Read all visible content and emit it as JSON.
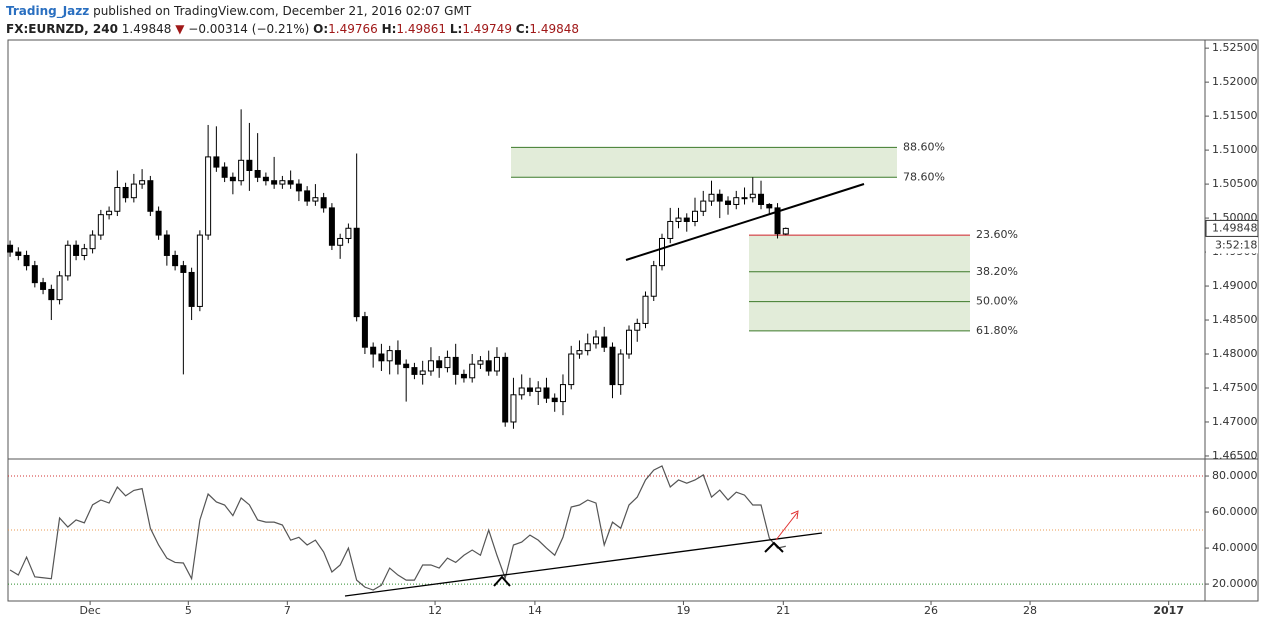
{
  "header": {
    "user": "Trading_Jazz",
    "published": "published on TradingView.com, December 21, 2016 02:07 GMT",
    "symbol": "FX:EURNZD, 240",
    "change": "−0.00314 (−0.21%)",
    "open_label": "O:",
    "high_label": "H:",
    "low_label": "L:",
    "close_label": "C:",
    "countdown": "3:52:18"
  },
  "chart_data": [
    {
      "type": "candlestick",
      "up_color": "#ffffff",
      "down_color": "#000000",
      "xlim": [
        -0.25,
        144.8
      ],
      "xticks": [
        {
          "value": 9.7,
          "label": "Dec"
        },
        {
          "value": 21.6,
          "label": "5"
        },
        {
          "value": 33.6,
          "label": "7"
        },
        {
          "value": 51.5,
          "label": "12"
        },
        {
          "value": 63.6,
          "label": "14"
        },
        {
          "value": 81.6,
          "label": "19"
        },
        {
          "value": 93.7,
          "label": "21"
        },
        {
          "value": 111.6,
          "label": "26"
        },
        {
          "value": 123.6,
          "label": "28"
        },
        {
          "value": 140.4,
          "label": "2017"
        }
      ],
      "ylim": [
        1.4647,
        1.5262
      ],
      "yticks": [
        {
          "value": 1.525,
          "label": "1.52500"
        },
        {
          "value": 1.52,
          "label": "1.52000"
        },
        {
          "value": 1.515,
          "label": "1.51500"
        },
        {
          "value": 1.51,
          "label": "1.51000"
        },
        {
          "value": 1.505,
          "label": "1.50500"
        },
        {
          "value": 1.5,
          "label": "1.50000"
        },
        {
          "value": 1.495,
          "label": "1.49500"
        },
        {
          "value": 1.49,
          "label": "1.49000"
        },
        {
          "value": 1.485,
          "label": "1.48500"
        },
        {
          "value": 1.48,
          "label": "1.48000"
        },
        {
          "value": 1.475,
          "label": "1.47500"
        },
        {
          "value": 1.47,
          "label": "1.47000"
        },
        {
          "value": 1.465,
          "label": "1.46500"
        }
      ],
      "open": [
        1.496,
        1.495,
        1.4945,
        1.493,
        1.4905,
        1.4895,
        1.488,
        1.4915,
        1.496,
        1.4945,
        1.4955,
        1.4975,
        1.5005,
        1.501,
        1.5045,
        1.503,
        1.505,
        1.5055,
        1.501,
        1.4975,
        1.4945,
        1.493,
        1.492,
        1.487,
        1.4975,
        1.509,
        1.5075,
        1.506,
        1.5055,
        1.5085,
        1.507,
        1.506,
        1.5055,
        1.505,
        1.5055,
        1.505,
        1.504,
        1.5025,
        1.503,
        1.5015,
        1.496,
        1.497,
        1.4985,
        1.4855,
        1.481,
        1.48,
        1.479,
        1.4805,
        1.4785,
        1.478,
        1.477,
        1.4775,
        1.479,
        1.478,
        1.4795,
        1.477,
        1.4765,
        1.4785,
        1.479,
        1.4775,
        1.4795,
        1.47,
        1.474,
        1.475,
        1.4745,
        1.475,
        1.4735,
        1.473,
        1.4755,
        1.48,
        1.4805,
        1.4815,
        1.4825,
        1.481,
        1.4755,
        1.48,
        1.4835,
        1.4845,
        1.4885,
        1.493,
        1.497,
        1.4995,
        1.5,
        1.4995,
        1.501,
        1.5025,
        1.5035,
        1.5025,
        1.502,
        1.503,
        1.503,
        1.5035,
        1.502,
        1.5015,
        1.49766
      ],
      "high": [
        1.4967,
        1.4957,
        1.4952,
        1.4937,
        1.4912,
        1.4902,
        1.4922,
        1.4967,
        1.4967,
        1.4962,
        1.4982,
        1.5012,
        1.5017,
        1.507,
        1.5052,
        1.5065,
        1.5072,
        1.5062,
        1.5017,
        1.4982,
        1.4952,
        1.4937,
        1.4927,
        1.4982,
        1.5137,
        1.5135,
        1.5082,
        1.5067,
        1.516,
        1.514,
        1.5125,
        1.5067,
        1.509,
        1.5062,
        1.507,
        1.5057,
        1.5047,
        1.505,
        1.5037,
        1.5022,
        1.4977,
        1.4992,
        1.5095,
        1.4862,
        1.4817,
        1.4815,
        1.4812,
        1.482,
        1.4792,
        1.4787,
        1.479,
        1.481,
        1.4797,
        1.4805,
        1.4815,
        1.4777,
        1.48,
        1.4797,
        1.4805,
        1.481,
        1.4802,
        1.4765,
        1.477,
        1.4765,
        1.476,
        1.4765,
        1.4742,
        1.477,
        1.4812,
        1.482,
        1.483,
        1.4835,
        1.484,
        1.4817,
        1.4807,
        1.4842,
        1.4852,
        1.4892,
        1.4937,
        1.4977,
        1.5015,
        1.5015,
        1.5007,
        1.503,
        1.504,
        1.5055,
        1.5042,
        1.5032,
        1.504,
        1.5045,
        1.506,
        1.5055,
        1.5022,
        1.5022,
        1.49861
      ],
      "low": [
        1.4943,
        1.4938,
        1.4923,
        1.4898,
        1.4888,
        1.485,
        1.4873,
        1.4908,
        1.4938,
        1.4938,
        1.4948,
        1.4968,
        1.4998,
        1.5003,
        1.5023,
        1.5023,
        1.5043,
        1.5003,
        1.4968,
        1.493,
        1.4923,
        1.477,
        1.485,
        1.4863,
        1.4968,
        1.5068,
        1.5053,
        1.5035,
        1.5048,
        1.504,
        1.5053,
        1.5048,
        1.5043,
        1.5043,
        1.5043,
        1.5025,
        1.5018,
        1.5018,
        1.5008,
        1.4953,
        1.494,
        1.4963,
        1.4848,
        1.48,
        1.478,
        1.4775,
        1.477,
        1.477,
        1.473,
        1.4763,
        1.4755,
        1.4768,
        1.4765,
        1.4773,
        1.4755,
        1.4758,
        1.4758,
        1.4778,
        1.4768,
        1.4768,
        1.4693,
        1.469,
        1.4733,
        1.4738,
        1.4725,
        1.4728,
        1.4715,
        1.471,
        1.4748,
        1.4793,
        1.4798,
        1.4808,
        1.4803,
        1.4735,
        1.474,
        1.4793,
        1.4818,
        1.4838,
        1.4878,
        1.4923,
        1.4963,
        1.4985,
        1.498,
        1.4988,
        1.5003,
        1.5018,
        1.5,
        1.5005,
        1.5013,
        1.502,
        1.5023,
        1.5013,
        1.5005,
        1.497,
        1.49749
      ],
      "close": [
        1.495,
        1.4945,
        1.493,
        1.4905,
        1.4895,
        1.488,
        1.4915,
        1.496,
        1.4945,
        1.4955,
        1.4975,
        1.5005,
        1.501,
        1.5045,
        1.503,
        1.505,
        1.5055,
        1.501,
        1.4975,
        1.4945,
        1.493,
        1.492,
        1.487,
        1.4975,
        1.509,
        1.5075,
        1.506,
        1.5055,
        1.5085,
        1.507,
        1.506,
        1.5055,
        1.505,
        1.5055,
        1.505,
        1.504,
        1.5025,
        1.503,
        1.5015,
        1.496,
        1.497,
        1.4985,
        1.4855,
        1.481,
        1.48,
        1.479,
        1.4805,
        1.4785,
        1.478,
        1.477,
        1.4775,
        1.479,
        1.478,
        1.4795,
        1.477,
        1.4765,
        1.4785,
        1.479,
        1.4775,
        1.4795,
        1.47,
        1.474,
        1.475,
        1.4745,
        1.475,
        1.4735,
        1.473,
        1.4755,
        1.48,
        1.4805,
        1.4815,
        1.4825,
        1.481,
        1.4755,
        1.48,
        1.4835,
        1.4845,
        1.4885,
        1.493,
        1.497,
        1.4995,
        1.5,
        1.4995,
        1.501,
        1.5025,
        1.5035,
        1.5025,
        1.502,
        1.503,
        1.503,
        1.5035,
        1.502,
        1.5015,
        1.4977,
        1.49848
      ],
      "fib_upper": [
        {
          "label": "88.60%",
          "price": 1.5104,
          "color": "#3c7a2a"
        },
        {
          "label": "78.60%",
          "price": 1.506,
          "color": "#3c7a2a"
        }
      ],
      "fib_lower": [
        {
          "label": "23.60%",
          "price": 1.4975,
          "color": "#d0202a"
        },
        {
          "label": "38.20%",
          "price": 1.4921,
          "color": "#3c7a2a"
        },
        {
          "label": "50.00%",
          "price": 1.4877,
          "color": "#3c7a2a"
        },
        {
          "label": "61.80%",
          "price": 1.4834,
          "color": "#3c7a2a"
        }
      ],
      "fib_fill": "#e2ecd9"
    },
    {
      "type": "line",
      "color": "#555555",
      "values": [
        27.8,
        25,
        35,
        24,
        23.5,
        23,
        56.7,
        51.7,
        55.6,
        54,
        64,
        66.7,
        65,
        73.9,
        69,
        72,
        73,
        51,
        41.7,
        34.4,
        32,
        31.7,
        23,
        55.6,
        70,
        65.6,
        63.9,
        58,
        67.8,
        64,
        55.6,
        54.4,
        54.4,
        52.8,
        44.4,
        46,
        41.7,
        44.4,
        37.8,
        26.7,
        30.6,
        40,
        22.2,
        18.3,
        16.7,
        19.4,
        28.9,
        25,
        22.2,
        22.2,
        30.6,
        30.6,
        28.9,
        34.4,
        32,
        36,
        38.9,
        36,
        50,
        36,
        23.3,
        41.7,
        43.3,
        47.2,
        44.4,
        40,
        36,
        46,
        62.8,
        63.9,
        66.7,
        65,
        41.7,
        54.4,
        51,
        63.9,
        68.3,
        77.8,
        83.3,
        85.6,
        73.9,
        77.8,
        76,
        77.8,
        80.6,
        68.3,
        72.2,
        66.7,
        71,
        69.4,
        63.9,
        63.9,
        45.6,
        40,
        41
      ],
      "ylim": [
        10.6,
        88.9
      ],
      "yticks": [
        {
          "value": 20,
          "label": "20.0000"
        },
        {
          "value": 40,
          "label": "40.0000"
        },
        {
          "value": 60,
          "label": "60.0000"
        },
        {
          "value": 80,
          "label": "80.0000"
        }
      ],
      "levels": [
        {
          "value": 80,
          "color": "#d03030"
        },
        {
          "value": 50,
          "color": "#e89a50"
        },
        {
          "value": 20,
          "color": "#2a8a2a"
        }
      ]
    }
  ]
}
